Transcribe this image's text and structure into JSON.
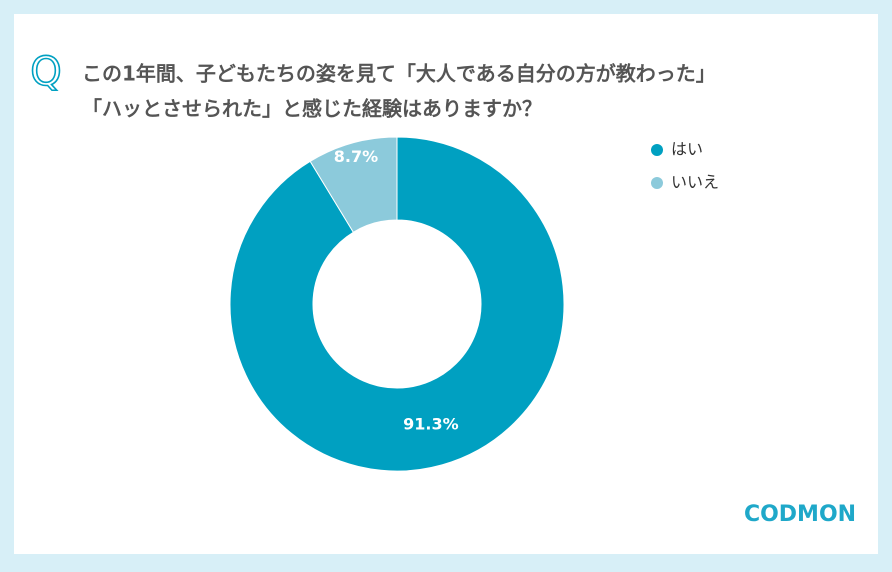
{
  "chart_data": {
    "type": "donut",
    "question_mark": "Q",
    "title": [
      "この1年間、子どもたちの姿を見て「大人である自分の方が教わった」",
      "「ハッとさせられた」と感じた経験はありますか？"
    ],
    "categories": [
      "はい",
      "いいえ"
    ],
    "values": [
      91.3,
      8.7
    ],
    "value_labels": [
      "91.3%",
      "8.7%"
    ],
    "colors": [
      "#00a0c1",
      "#8ccadb"
    ],
    "legend": "top-right",
    "logo": "CODMON"
  }
}
